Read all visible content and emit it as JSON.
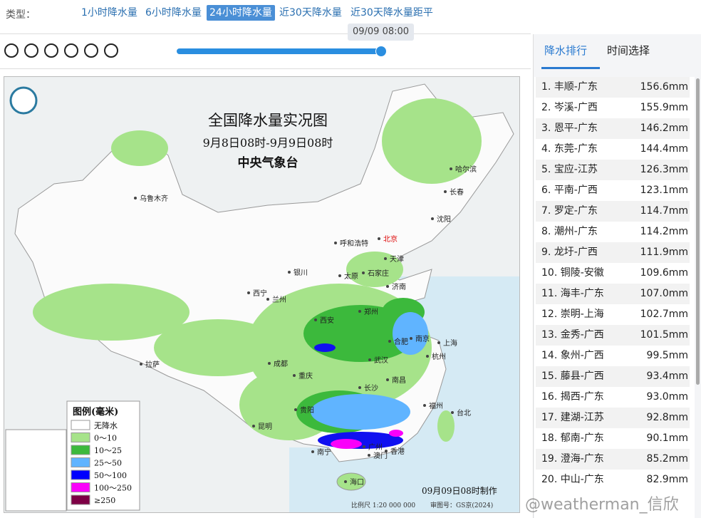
{
  "filter": {
    "label": "类型：",
    "tabs": [
      "1小时降水量",
      "6小时降水量",
      "24小时降水量",
      "近30天降水量",
      "近30天降水量距平"
    ],
    "active_tab": 2
  },
  "timeline": {
    "tooltip": "09/09 08:00"
  },
  "map": {
    "title": "全国降水量实况图",
    "subtitle": "9月8日08时-9月9日08时",
    "issuer": "中央气象台",
    "legend_title": "图例(毫米)",
    "legend_items": [
      "无降水",
      "0～10",
      "10～25",
      "25～50",
      "50～100",
      "100～250",
      "≥250"
    ],
    "cities": [
      "乌鲁木齐",
      "哈尔滨",
      "长春",
      "沈阳",
      "北京",
      "天津",
      "呼和浩特",
      "银川",
      "太原",
      "石家庄",
      "济南",
      "西宁",
      "兰州",
      "郑州",
      "西安",
      "合肥",
      "南京",
      "上海",
      "武汉",
      "杭州",
      "成都",
      "重庆",
      "拉萨",
      "长沙",
      "南昌",
      "福州",
      "台北",
      "贵阳",
      "昆明",
      "南宁",
      "广州",
      "香港",
      "澳门",
      "海口"
    ],
    "footer_time": "09月09日08时制作",
    "scale": "比例尺 1:20 000 000",
    "approval": "审图号：GS京(2024)"
  },
  "panel": {
    "tabs": [
      "降水排行",
      "时间选择"
    ],
    "active_tab": 0,
    "ranking": [
      {
        "rank": "1.",
        "station": "丰顺-广东",
        "amount": "156.6mm"
      },
      {
        "rank": "2.",
        "station": "岑溪-广西",
        "amount": "155.9mm"
      },
      {
        "rank": "3.",
        "station": "恩平-广东",
        "amount": "146.2mm"
      },
      {
        "rank": "4.",
        "station": "东莞-广东",
        "amount": "144.4mm"
      },
      {
        "rank": "5.",
        "station": "宝应-江苏",
        "amount": "126.3mm"
      },
      {
        "rank": "6.",
        "station": "平南-广西",
        "amount": "123.1mm"
      },
      {
        "rank": "7.",
        "station": "罗定-广东",
        "amount": "114.7mm"
      },
      {
        "rank": "8.",
        "station": "潮州-广东",
        "amount": "114.2mm"
      },
      {
        "rank": "9.",
        "station": "龙圩-广西",
        "amount": "111.9mm"
      },
      {
        "rank": "10.",
        "station": "铜陵-安徽",
        "amount": "109.6mm"
      },
      {
        "rank": "11.",
        "station": "海丰-广东",
        "amount": "107.0mm"
      },
      {
        "rank": "12.",
        "station": "崇明-上海",
        "amount": "102.7mm"
      },
      {
        "rank": "13.",
        "station": "金秀-广西",
        "amount": "101.5mm"
      },
      {
        "rank": "14.",
        "station": "象州-广西",
        "amount": "99.5mm"
      },
      {
        "rank": "15.",
        "station": "藤县-广西",
        "amount": "93.4mm"
      },
      {
        "rank": "16.",
        "station": "揭西-广东",
        "amount": "93.0mm"
      },
      {
        "rank": "17.",
        "station": "建湖-江苏",
        "amount": "92.8mm"
      },
      {
        "rank": "18.",
        "station": "郁南-广东",
        "amount": "90.1mm"
      },
      {
        "rank": "19.",
        "station": "澄海-广东",
        "amount": "85.2mm"
      },
      {
        "rank": "20.",
        "station": "中山-广东",
        "amount": "82.9mm"
      }
    ]
  },
  "watermark": "@weatherman_信欣"
}
